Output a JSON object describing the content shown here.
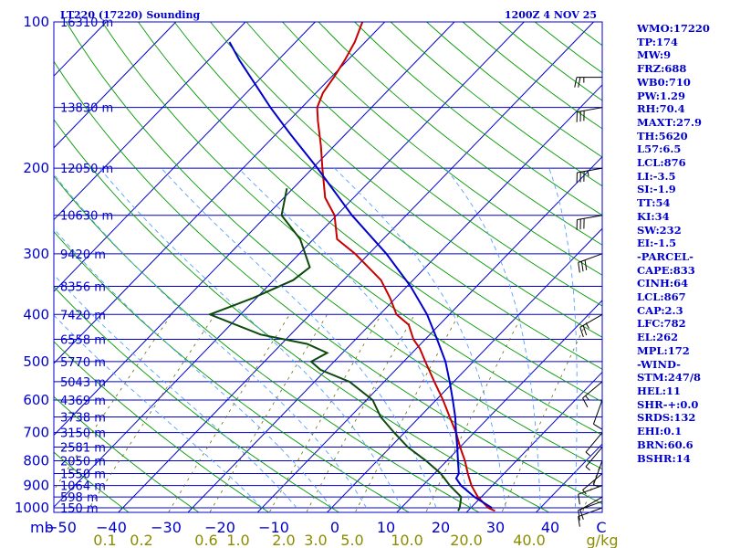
{
  "header": {
    "station": "LT220 (17220) Sounding",
    "time": "1200Z  4 NOV 25"
  },
  "colors": {
    "isobar": "#0000cc",
    "isotherm": "#0000cc",
    "dry_adiabat": "#009900",
    "moist_adiabat": "#55a0ff",
    "mixing_ratio": "#6b6b00",
    "temperature": "#c80000",
    "dewpoint": "#0c4a0c",
    "parcel": "#0000cc",
    "wind": "#000000"
  },
  "stats": [
    "WMO:17220",
    "TP:174",
    "MW:9",
    "FRZ:688",
    "WB0:710",
    "PW:1.29",
    "RH:70.4",
    "MAXT:27.9",
    "TH:5620",
    "L57:6.5",
    "LCL:876",
    "LI:-3.5",
    "SI:-1.9",
    "TT:54",
    "KI:34",
    "SW:232",
    "EI:-1.5",
    "-PARCEL-",
    "CAPE:833",
    "CINH:64",
    "LCL:867",
    "CAP:2.3",
    "LFC:782",
    "EL:262",
    "MPL:172",
    "-WIND-",
    "STM:247/8",
    "HEL:11",
    "SHR-+:0.0",
    "SRDS:132",
    "EHI:0.1",
    "BRN:60.6",
    "BSHR:14"
  ],
  "chart_data": {
    "type": "line",
    "title": "LT220 (17220) Sounding",
    "subtitle": "1200Z  4 NOV 25",
    "xlabel": "°C",
    "ylabel": "mb",
    "xlim": [
      -50,
      50
    ],
    "ylim": [
      1000,
      100
    ],
    "pressure_ticks": [
      100,
      200,
      300,
      400,
      500,
      600,
      700,
      800,
      900,
      1000
    ],
    "temperature_ticks": [
      {
        "label": "−50",
        "t": -50
      },
      {
        "label": "−40",
        "t": -40
      },
      {
        "label": "−30",
        "t": -30
      },
      {
        "label": "−20",
        "t": -20
      },
      {
        "label": "−10",
        "t": -10
      },
      {
        "label": "0",
        "t": 0
      },
      {
        "label": "10",
        "t": 10
      },
      {
        "label": "20",
        "t": 20
      },
      {
        "label": "30",
        "t": 30
      },
      {
        "label": "40",
        "t": 40
      },
      {
        "label": "C",
        "t": 50
      }
    ],
    "unit_left": "mb",
    "height_labels": [
      {
        "p": 100,
        "label": "16310 m"
      },
      {
        "p": 150,
        "label": "13830 m"
      },
      {
        "p": 200,
        "label": "12050 m"
      },
      {
        "p": 250,
        "label": "10630 m"
      },
      {
        "p": 300,
        "label": "9420 m"
      },
      {
        "p": 350,
        "label": "8356 m"
      },
      {
        "p": 400,
        "label": "7420 m"
      },
      {
        "p": 450,
        "label": "6558 m"
      },
      {
        "p": 500,
        "label": "5770 m"
      },
      {
        "p": 550,
        "label": "5043 m"
      },
      {
        "p": 600,
        "label": "4369 m"
      },
      {
        "p": 650,
        "label": "3738 m"
      },
      {
        "p": 700,
        "label": "3150 m"
      },
      {
        "p": 750,
        "label": "2581 m"
      },
      {
        "p": 800,
        "label": "2050 m"
      },
      {
        "p": 850,
        "label": "1550 m"
      },
      {
        "p": 900,
        "label": "1064 m"
      },
      {
        "p": 950,
        "label": "598 m"
      },
      {
        "p": 1000,
        "label": "150 m"
      }
    ],
    "mixing_ratio_labels": [
      {
        "label": "0.1",
        "w": 0.1
      },
      {
        "label": "0.2",
        "w": 0.2
      },
      {
        "label": "0.6",
        "w": 0.6
      },
      {
        "label": "1.0",
        "w": 1.0
      },
      {
        "label": "2.0",
        "w": 2.0
      },
      {
        "label": "3.0",
        "w": 3.0
      },
      {
        "label": "5.0",
        "w": 5.0
      },
      {
        "label": "10.0",
        "w": 10.0
      },
      {
        "label": "20.0",
        "w": 20.0
      },
      {
        "label": "40.0",
        "w": 40.0
      }
    ],
    "mixing_ratio_unit": "g/kg",
    "series": [
      {
        "name": "Temperature",
        "points": [
          {
            "p": 1015,
            "t": 23.9
          },
          {
            "p": 1000,
            "t": 22.5
          },
          {
            "p": 950,
            "t": 19.5
          },
          {
            "p": 900,
            "t": 17.0
          },
          {
            "p": 850,
            "t": 14.8
          },
          {
            "p": 800,
            "t": 12.6
          },
          {
            "p": 750,
            "t": 10.0
          },
          {
            "p": 700,
            "t": 7.4
          },
          {
            "p": 650,
            "t": 4.3
          },
          {
            "p": 600,
            "t": 1.0
          },
          {
            "p": 550,
            "t": -2.8
          },
          {
            "p": 500,
            "t": -6.9
          },
          {
            "p": 470,
            "t": -9.5
          },
          {
            "p": 450,
            "t": -11.7
          },
          {
            "p": 420,
            "t": -14.4
          },
          {
            "p": 400,
            "t": -17.6
          },
          {
            "p": 370,
            "t": -20.8
          },
          {
            "p": 340,
            "t": -24.6
          },
          {
            "p": 300,
            "t": -32.0
          },
          {
            "p": 280,
            "t": -36.6
          },
          {
            "p": 250,
            "t": -40.3
          },
          {
            "p": 230,
            "t": -44.1
          },
          {
            "p": 200,
            "t": -48.6
          },
          {
            "p": 180,
            "t": -51.9
          },
          {
            "p": 160,
            "t": -55.8
          },
          {
            "p": 150,
            "t": -57.8
          },
          {
            "p": 140,
            "t": -59.0
          },
          {
            "p": 130,
            "t": -59.6
          },
          {
            "p": 120,
            "t": -60.4
          },
          {
            "p": 110,
            "t": -61.5
          },
          {
            "p": 100,
            "t": -63.2
          }
        ]
      },
      {
        "name": "Dewpoint",
        "points": [
          {
            "p": 1015,
            "t": 18.6
          },
          {
            "p": 1000,
            "t": 18.4
          },
          {
            "p": 950,
            "t": 17.1
          },
          {
            "p": 900,
            "t": 13.9
          },
          {
            "p": 850,
            "t": 10.9
          },
          {
            "p": 800,
            "t": 7.0
          },
          {
            "p": 750,
            "t": 2.5
          },
          {
            "p": 700,
            "t": -1.5
          },
          {
            "p": 650,
            "t": -5.6
          },
          {
            "p": 600,
            "t": -9.1
          },
          {
            "p": 550,
            "t": -15.0
          },
          {
            "p": 520,
            "t": -20.8
          },
          {
            "p": 500,
            "t": -23.3
          },
          {
            "p": 480,
            "t": -22.2
          },
          {
            "p": 460,
            "t": -26.3
          },
          {
            "p": 440,
            "t": -34.3
          },
          {
            "p": 400,
            "t": -44.4
          },
          {
            "p": 370,
            "t": -40.5
          },
          {
            "p": 340,
            "t": -37.2
          },
          {
            "p": 320,
            "t": -36.6
          },
          {
            "p": 280,
            "t": -41.9
          },
          {
            "p": 250,
            "t": -47.9
          },
          {
            "p": 220,
            "t": -50.9
          }
        ]
      },
      {
        "name": "Parcel",
        "points": [
          {
            "p": 1000,
            "t": 23.0
          },
          {
            "p": 950,
            "t": 19.0
          },
          {
            "p": 900,
            "t": 15.5
          },
          {
            "p": 870,
            "t": 13.8
          },
          {
            "p": 850,
            "t": 13.5
          },
          {
            "p": 800,
            "t": 11.6
          },
          {
            "p": 750,
            "t": 9.6
          },
          {
            "p": 700,
            "t": 7.4
          },
          {
            "p": 650,
            "t": 5.1
          },
          {
            "p": 600,
            "t": 2.4
          },
          {
            "p": 550,
            "t": -0.6
          },
          {
            "p": 500,
            "t": -4.0
          },
          {
            "p": 450,
            "t": -8.3
          },
          {
            "p": 400,
            "t": -13.2
          },
          {
            "p": 350,
            "t": -19.5
          },
          {
            "p": 300,
            "t": -27.5
          },
          {
            "p": 250,
            "t": -37.8
          },
          {
            "p": 200,
            "t": -49.3
          },
          {
            "p": 170,
            "t": -58.0
          },
          {
            "p": 150,
            "t": -64.5
          },
          {
            "p": 120,
            "t": -75.5
          },
          {
            "p": 110,
            "t": -79.5
          }
        ]
      }
    ],
    "wind_barbs": [
      {
        "p": 1000,
        "dir": 250,
        "spd": 10
      },
      {
        "p": 970,
        "dir": 250,
        "spd": 10
      },
      {
        "p": 950,
        "dir": 240,
        "spd": 10
      },
      {
        "p": 900,
        "dir": 250,
        "spd": 10
      },
      {
        "p": 850,
        "dir": 230,
        "spd": 5
      },
      {
        "p": 800,
        "dir": 200,
        "spd": 5
      },
      {
        "p": 750,
        "dir": 220,
        "spd": 5
      },
      {
        "p": 700,
        "dir": 220,
        "spd": 5
      },
      {
        "p": 600,
        "dir": 200,
        "spd": 10
      },
      {
        "p": 550,
        "dir": 230,
        "spd": 15
      },
      {
        "p": 400,
        "dir": 240,
        "spd": 25
      },
      {
        "p": 300,
        "dir": 250,
        "spd": 30
      },
      {
        "p": 250,
        "dir": 260,
        "spd": 30
      },
      {
        "p": 200,
        "dir": 260,
        "spd": 35
      },
      {
        "p": 150,
        "dir": 260,
        "spd": 30
      },
      {
        "p": 130,
        "dir": 270,
        "spd": 25
      }
    ]
  }
}
